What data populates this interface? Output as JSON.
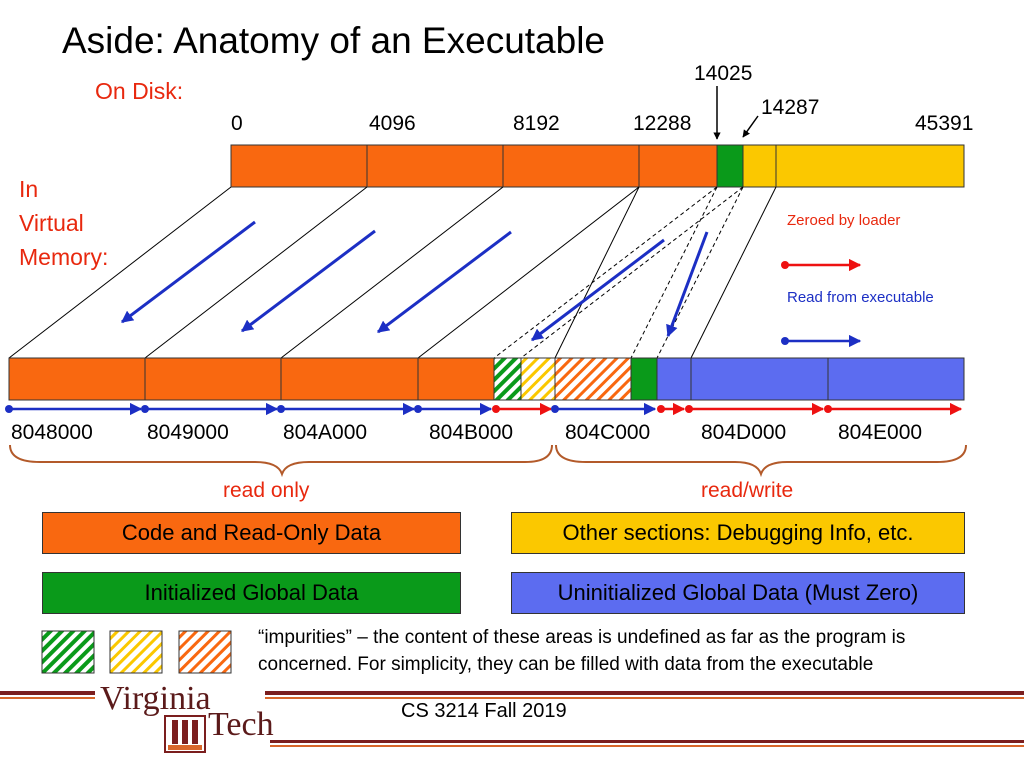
{
  "title": "Aside: Anatomy of an Executable",
  "on_disk_label": "On Disk:",
  "virtual_memory_label": [
    "In",
    "Virtual",
    "Memory:"
  ],
  "disk_offsets": {
    "o0": "0",
    "o4096": "4096",
    "o8192": "8192",
    "o12288": "12288",
    "o14025": "14025",
    "o14287": "14287",
    "o45391": "45391"
  },
  "disk_ellipsis": "…..",
  "legend": {
    "zeroed": "Zeroed by loader",
    "read": "Read from executable"
  },
  "va_addresses": [
    "8048000",
    "8049000",
    "804A000",
    "804B000",
    "804C000",
    "804D000",
    "804E000"
  ],
  "region_labels": {
    "read_only": "read only",
    "read_write": "read/write"
  },
  "sections": {
    "code": "Code and Read-Only Data",
    "other": "Other sections: Debugging Info, etc.",
    "init": "Initialized Global Data",
    "uninit": "Uninitialized Global Data (Must Zero)"
  },
  "impurities_note": "“impurities” – the content of these areas is undefined as far as the program is concerned. For simplicity, they can be filled with data from the executable",
  "footer": "CS 3214 Fall 2019",
  "brand": {
    "virginia": "Virginia",
    "tech": "Tech"
  },
  "colors": {
    "orange": "#f96810",
    "green": "#0a9a1a",
    "yellow": "#fbc800",
    "blue": "#5c6cf0",
    "red": "#ee1111",
    "arrow_blue": "#1c2fc4",
    "brand_maroon": "#6b1d1d",
    "brand_orange": "#d8662a"
  }
}
